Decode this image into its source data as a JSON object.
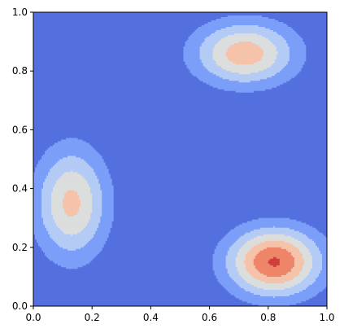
{
  "chart_data": {
    "type": "heatmap",
    "subtype": "filled-contour",
    "colormap": "coolwarm",
    "xlim": [
      0,
      1
    ],
    "ylim": [
      0,
      1
    ],
    "x_ticks": [
      "0.0",
      "0.2",
      "0.4",
      "0.6",
      "0.8",
      "1.0"
    ],
    "y_ticks": [
      "0.0",
      "0.2",
      "0.4",
      "0.6",
      "0.8",
      "1.0"
    ],
    "levels": [
      0,
      0.2,
      0.4,
      0.6,
      0.8,
      1.0,
      1.2
    ],
    "level_colors": [
      "#5470de",
      "#7b9ff9",
      "#b4cbf5",
      "#dcdddd",
      "#f5c2aa",
      "#ee8468",
      "#cc403a"
    ],
    "peaks": [
      {
        "cx": 0.82,
        "cy": 0.15,
        "height": 1.22,
        "sx": 0.11,
        "sy": 0.08
      },
      {
        "cx": 0.72,
        "cy": 0.86,
        "height": 0.92,
        "sx": 0.12,
        "sy": 0.075
      },
      {
        "cx": 0.13,
        "cy": 0.35,
        "height": 0.85,
        "sx": 0.085,
        "sy": 0.13
      }
    ],
    "grid": false,
    "xlabel": "",
    "ylabel": "",
    "title": ""
  }
}
